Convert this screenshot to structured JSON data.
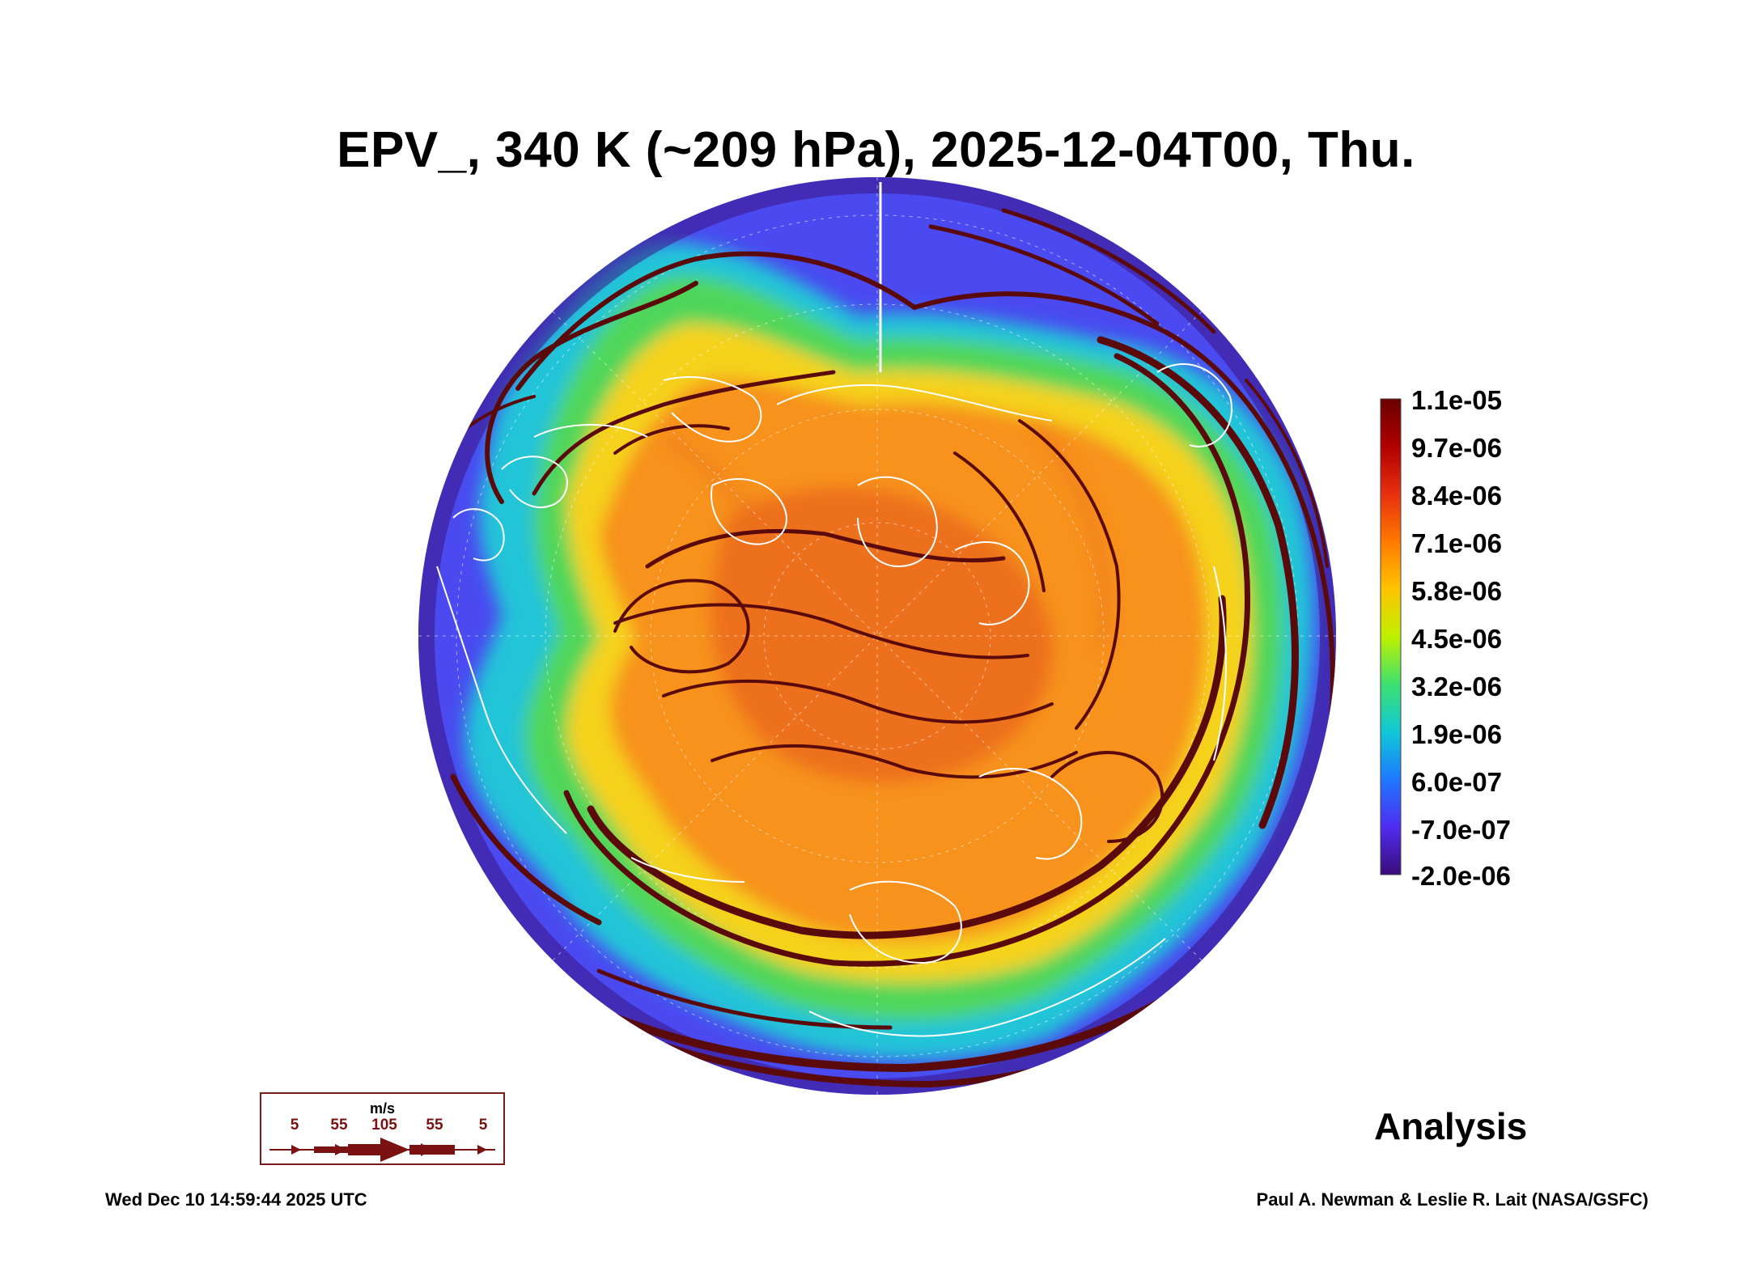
{
  "title": "EPV_, 340 K (~209 hPa), 2025-12-04T00, Thu.",
  "colorbar": {
    "labels": [
      "1.1e-05",
      "9.7e-06",
      "8.4e-06",
      "7.1e-06",
      "5.8e-06",
      "4.5e-06",
      "3.2e-06",
      "1.9e-06",
      "6.0e-07",
      "-7.0e-07",
      "-2.0e-06"
    ],
    "colors": [
      "#6a0000",
      "#b00000",
      "#e83010",
      "#ff7a00",
      "#ffc400",
      "#bff000",
      "#3ee070",
      "#10c8d8",
      "#1e78ff",
      "#4f2cf0",
      "#3a0c7a"
    ]
  },
  "map": {
    "projection": "north-polar-orthographic",
    "field_colors": {
      "core": "#f7921c",
      "core_dark": "#e8621a",
      "ring_yellow": "#f5d21a",
      "ring_green": "#4fd65a",
      "ring_cyan": "#22c4d8",
      "outer_blue": "#4a4af0",
      "outer_violet": "#5a2ad0"
    },
    "streamline_color": "#5a0a0a",
    "coastline_color": "#ffffff"
  },
  "wind_legend": {
    "unit": "m/s",
    "values": [
      "5",
      "55",
      "105",
      "55",
      "5"
    ]
  },
  "label": "Analysis",
  "footer": {
    "timestamp": "Wed Dec 10 14:59:44 2025 UTC",
    "credit": "Paul A. Newman & Leslie R. Lait (NASA/GSFC)"
  }
}
